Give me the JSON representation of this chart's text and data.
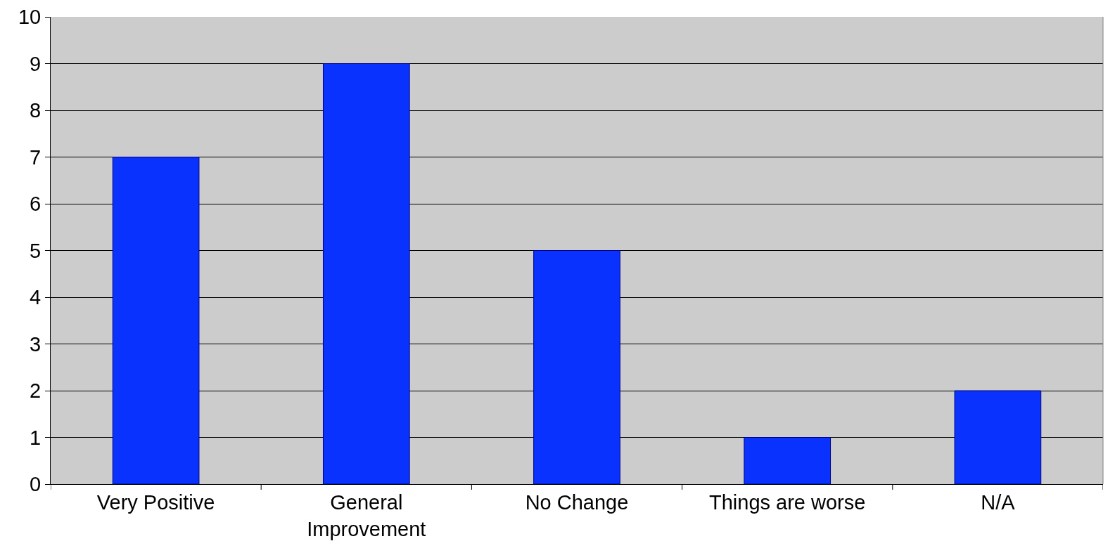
{
  "chart_data": {
    "type": "bar",
    "categories": [
      "Very Positive",
      "General Improvement",
      "No Change",
      "Things are worse",
      "N/A"
    ],
    "values": [
      7,
      9,
      5,
      1,
      2
    ],
    "color": "#0a32ff",
    "ylim": [
      0,
      10
    ],
    "yticks": [
      0,
      1,
      2,
      3,
      4,
      5,
      6,
      7,
      8,
      9,
      10
    ],
    "grid": "y"
  }
}
